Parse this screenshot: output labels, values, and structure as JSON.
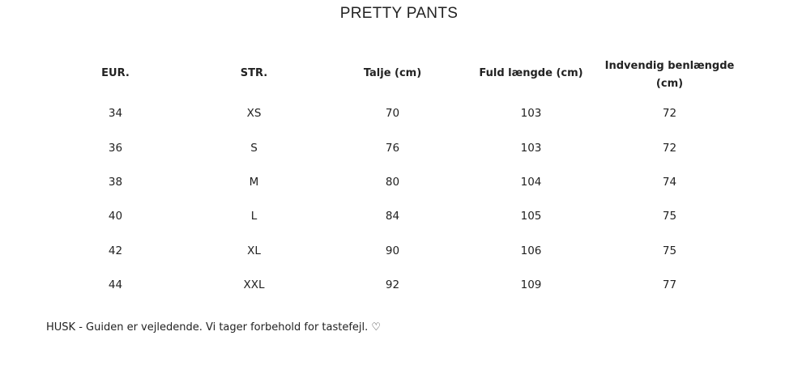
{
  "title": "PRETTY PANTS",
  "table": {
    "headers": [
      "EUR.",
      "STR.",
      "Talje (cm)",
      "Fuld længde (cm)",
      "Indvendig benlængde (cm)"
    ],
    "rows": [
      [
        "34",
        "XS",
        "70",
        "103",
        "72"
      ],
      [
        "36",
        "S",
        "76",
        "103",
        "72"
      ],
      [
        "38",
        "M",
        "80",
        "104",
        "74"
      ],
      [
        "40",
        "L",
        "84",
        "105",
        "75"
      ],
      [
        "42",
        "XL",
        "90",
        "106",
        "75"
      ],
      [
        "44",
        "XXL",
        "92",
        "109",
        "77"
      ]
    ]
  },
  "note": "HUSK - Guiden er vejledende. Vi tager forbehold for tastefejl. ♡"
}
